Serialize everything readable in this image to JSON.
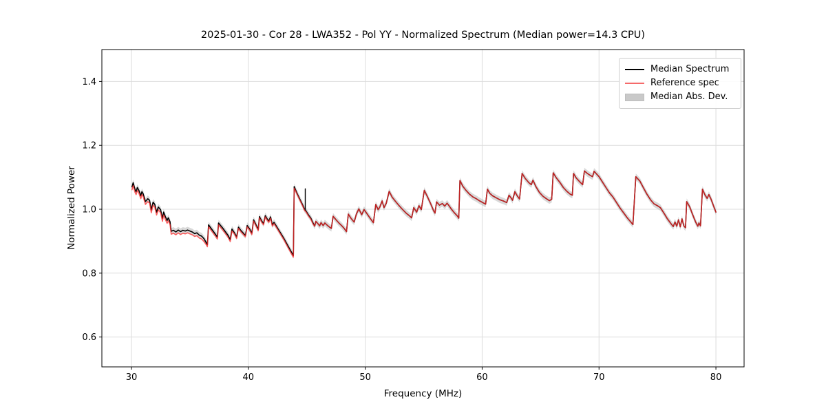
{
  "figure": {
    "title": "2025-01-30 - Cor 28 - LWA352 - Pol YY - Normalized Spectrum (Median power=14.3 CPU)",
    "xlabel": "Frequency (MHz)",
    "ylabel": "Normalized Power",
    "legend": [
      {
        "label": "Median Spectrum",
        "type": "line",
        "color": "#000000"
      },
      {
        "label": "Reference spec",
        "type": "line",
        "color": "#f56a6a"
      },
      {
        "label": "Median Abs. Dev.",
        "type": "patch",
        "color": "#c9c9c9"
      }
    ]
  },
  "chart_data": {
    "type": "line",
    "title": "2025-01-30 - Cor 28 - LWA352 - Pol YY - Normalized Spectrum (Median power=14.3 CPU)",
    "xlabel": "Frequency (MHz)",
    "ylabel": "Normalized Power",
    "xlim": [
      27.47,
      82.41
    ],
    "ylim": [
      0.5065,
      1.5
    ],
    "xticks": [
      30,
      40,
      50,
      60,
      70,
      80
    ],
    "xtick_labels": [
      "30",
      "40",
      "50",
      "60",
      "70",
      "80"
    ],
    "yticks": [
      0.6,
      0.8,
      1.0,
      1.2,
      1.4
    ],
    "ytick_labels": [
      "0.6",
      "0.8",
      "1.0",
      "1.2",
      "1.4"
    ],
    "grid": true,
    "legend_position": "upper right",
    "series_names": [
      "Median Spectrum",
      "Reference spec",
      "Median Abs. Dev."
    ],
    "colors": {
      "median": "#000000",
      "reference": "rgba(255,45,45,0.75)",
      "band": "#9a9a9a"
    },
    "band_halfwidth": 0.01,
    "spike": {
      "x": 44.87,
      "from": 0.997,
      "to": 1.064
    },
    "points_format": [
      "freq_MHz",
      "median",
      "reference"
    ],
    "points": [
      [
        30.05,
        1.07,
        1.061
      ],
      [
        30.15,
        1.083,
        1.074
      ],
      [
        30.3,
        1.062,
        1.053
      ],
      [
        30.4,
        1.055,
        1.046
      ],
      [
        30.5,
        1.068,
        1.059
      ],
      [
        30.65,
        1.058,
        1.049
      ],
      [
        30.8,
        1.042,
        1.033
      ],
      [
        30.9,
        1.055,
        1.046
      ],
      [
        31.0,
        1.049,
        1.04
      ],
      [
        31.2,
        1.024,
        1.015
      ],
      [
        31.4,
        1.033,
        1.024
      ],
      [
        31.55,
        1.028,
        1.019
      ],
      [
        31.7,
        0.998,
        0.989
      ],
      [
        31.85,
        1.022,
        1.013
      ],
      [
        32.0,
        1.015,
        1.006
      ],
      [
        32.15,
        0.991,
        0.982
      ],
      [
        32.3,
        1.007,
        0.998
      ],
      [
        32.5,
        0.998,
        0.989
      ],
      [
        32.65,
        0.971,
        0.962
      ],
      [
        32.75,
        0.991,
        0.982
      ],
      [
        32.9,
        0.977,
        0.968
      ],
      [
        33.05,
        0.965,
        0.956
      ],
      [
        33.15,
        0.973,
        0.964
      ],
      [
        33.3,
        0.961,
        0.952
      ],
      [
        33.4,
        0.931,
        0.922
      ],
      [
        33.6,
        0.934,
        0.925
      ],
      [
        33.8,
        0.929,
        0.92
      ],
      [
        34.0,
        0.935,
        0.926
      ],
      [
        34.2,
        0.93,
        0.921
      ],
      [
        34.4,
        0.934,
        0.925
      ],
      [
        34.6,
        0.932,
        0.923
      ],
      [
        34.8,
        0.935,
        0.926
      ],
      [
        35.0,
        0.932,
        0.923
      ],
      [
        35.2,
        0.929,
        0.92
      ],
      [
        35.4,
        0.924,
        0.915
      ],
      [
        35.6,
        0.926,
        0.917
      ],
      [
        35.8,
        0.919,
        0.91
      ],
      [
        36.0,
        0.916,
        0.907
      ],
      [
        36.2,
        0.908,
        0.899
      ],
      [
        36.4,
        0.895,
        0.889
      ],
      [
        36.5,
        0.889,
        0.883
      ],
      [
        36.6,
        0.951,
        0.945
      ],
      [
        36.8,
        0.941,
        0.935
      ],
      [
        37.0,
        0.931,
        0.925
      ],
      [
        37.2,
        0.921,
        0.915
      ],
      [
        37.35,
        0.913,
        0.907
      ],
      [
        37.45,
        0.957,
        0.951
      ],
      [
        37.65,
        0.948,
        0.942
      ],
      [
        37.85,
        0.939,
        0.933
      ],
      [
        38.05,
        0.929,
        0.923
      ],
      [
        38.25,
        0.919,
        0.913
      ],
      [
        38.45,
        0.905,
        0.899
      ],
      [
        38.6,
        0.938,
        0.932
      ],
      [
        38.8,
        0.927,
        0.923
      ],
      [
        39.0,
        0.913,
        0.909
      ],
      [
        39.15,
        0.944,
        0.94
      ],
      [
        39.35,
        0.934,
        0.93
      ],
      [
        39.55,
        0.926,
        0.922
      ],
      [
        39.75,
        0.918,
        0.914
      ],
      [
        39.9,
        0.949,
        0.945
      ],
      [
        40.1,
        0.939,
        0.935
      ],
      [
        40.3,
        0.925,
        0.921
      ],
      [
        40.45,
        0.967,
        0.963
      ],
      [
        40.65,
        0.952,
        0.948
      ],
      [
        40.85,
        0.937,
        0.933
      ],
      [
        40.95,
        0.977,
        0.973
      ],
      [
        41.15,
        0.963,
        0.959
      ],
      [
        41.3,
        0.955,
        0.951
      ],
      [
        41.45,
        0.98,
        0.976
      ],
      [
        41.6,
        0.97,
        0.966
      ],
      [
        41.75,
        0.963,
        0.959
      ],
      [
        41.9,
        0.976,
        0.972
      ],
      [
        42.05,
        0.951,
        0.947
      ],
      [
        42.2,
        0.959,
        0.955
      ],
      [
        42.45,
        0.944,
        0.94
      ],
      [
        42.75,
        0.926,
        0.922
      ],
      [
        43.05,
        0.908,
        0.904
      ],
      [
        43.35,
        0.888,
        0.883
      ],
      [
        43.65,
        0.868,
        0.863
      ],
      [
        43.85,
        0.855,
        0.85
      ],
      [
        43.92,
        1.071,
        1.066
      ],
      [
        44.15,
        1.051,
        1.048
      ],
      [
        44.4,
        1.032,
        1.029
      ],
      [
        44.65,
        1.013,
        1.01
      ],
      [
        44.82,
        0.999,
        0.996
      ],
      [
        44.93,
        0.995,
        0.992
      ],
      [
        45.15,
        0.982,
        0.979
      ],
      [
        45.35,
        0.972,
        0.969
      ],
      [
        45.55,
        0.956,
        0.953
      ],
      [
        45.68,
        0.947,
        0.947
      ],
      [
        45.78,
        0.962,
        0.962
      ],
      [
        45.95,
        0.955,
        0.955
      ],
      [
        46.1,
        0.948,
        0.948
      ],
      [
        46.22,
        0.958,
        0.958
      ],
      [
        46.4,
        0.949,
        0.949
      ],
      [
        46.55,
        0.957,
        0.957
      ],
      [
        46.75,
        0.95,
        0.95
      ],
      [
        46.95,
        0.944,
        0.944
      ],
      [
        47.1,
        0.94,
        0.94
      ],
      [
        47.25,
        0.978,
        0.978
      ],
      [
        47.5,
        0.967,
        0.967
      ],
      [
        47.75,
        0.957,
        0.957
      ],
      [
        48.0,
        0.948,
        0.948
      ],
      [
        48.2,
        0.94,
        0.94
      ],
      [
        48.4,
        0.93,
        0.93
      ],
      [
        48.55,
        0.985,
        0.985
      ],
      [
        48.8,
        0.971,
        0.971
      ],
      [
        49.05,
        0.96,
        0.96
      ],
      [
        49.25,
        0.986,
        0.986
      ],
      [
        49.45,
        1.001,
        1.001
      ],
      [
        49.7,
        0.983,
        0.983
      ],
      [
        49.9,
        0.999,
        0.999
      ],
      [
        50.15,
        0.986,
        0.986
      ],
      [
        50.45,
        0.97,
        0.97
      ],
      [
        50.7,
        0.958,
        0.958
      ],
      [
        50.9,
        1.015,
        1.015
      ],
      [
        51.1,
        0.999,
        0.999
      ],
      [
        51.25,
        1.007,
        1.007
      ],
      [
        51.45,
        1.026,
        1.026
      ],
      [
        51.6,
        1.005,
        1.005
      ],
      [
        51.8,
        1.019,
        1.019
      ],
      [
        52.05,
        1.056,
        1.056
      ],
      [
        52.3,
        1.038,
        1.038
      ],
      [
        52.6,
        1.024,
        1.024
      ],
      [
        52.9,
        1.011,
        1.011
      ],
      [
        53.2,
        0.999,
        0.999
      ],
      [
        53.5,
        0.988,
        0.988
      ],
      [
        53.8,
        0.979,
        0.979
      ],
      [
        53.97,
        0.973,
        0.973
      ],
      [
        54.15,
        1.005,
        1.005
      ],
      [
        54.4,
        0.991,
        0.991
      ],
      [
        54.6,
        1.011,
        1.011
      ],
      [
        54.8,
        0.999,
        0.999
      ],
      [
        55.05,
        1.059,
        1.059
      ],
      [
        55.3,
        1.041,
        1.041
      ],
      [
        55.6,
        1.017,
        1.017
      ],
      [
        55.85,
        0.995,
        0.995
      ],
      [
        55.97,
        0.988,
        0.988
      ],
      [
        56.1,
        1.023,
        1.023
      ],
      [
        56.35,
        1.013,
        1.013
      ],
      [
        56.6,
        1.018,
        1.018
      ],
      [
        56.8,
        1.01,
        1.01
      ],
      [
        57.0,
        1.019,
        1.019
      ],
      [
        57.15,
        1.012,
        1.012
      ],
      [
        57.4,
        0.999,
        0.999
      ],
      [
        57.65,
        0.988,
        0.988
      ],
      [
        57.9,
        0.978,
        0.978
      ],
      [
        58.0,
        0.972,
        0.972
      ],
      [
        58.1,
        1.09,
        1.09
      ],
      [
        58.35,
        1.072,
        1.072
      ],
      [
        58.6,
        1.06,
        1.06
      ],
      [
        58.9,
        1.048,
        1.048
      ],
      [
        59.2,
        1.039,
        1.039
      ],
      [
        59.5,
        1.033,
        1.033
      ],
      [
        59.75,
        1.027,
        1.027
      ],
      [
        60.0,
        1.022,
        1.022
      ],
      [
        60.3,
        1.016,
        1.016
      ],
      [
        60.45,
        1.063,
        1.063
      ],
      [
        60.65,
        1.05,
        1.05
      ],
      [
        60.9,
        1.042,
        1.042
      ],
      [
        61.2,
        1.036,
        1.036
      ],
      [
        61.5,
        1.03,
        1.03
      ],
      [
        61.8,
        1.026,
        1.026
      ],
      [
        62.1,
        1.021,
        1.021
      ],
      [
        62.3,
        1.044,
        1.044
      ],
      [
        62.5,
        1.034,
        1.034
      ],
      [
        62.6,
        1.028,
        1.028
      ],
      [
        62.8,
        1.055,
        1.055
      ],
      [
        63.0,
        1.042,
        1.042
      ],
      [
        63.2,
        1.032,
        1.032
      ],
      [
        63.42,
        1.112,
        1.112
      ],
      [
        63.7,
        1.096,
        1.096
      ],
      [
        64.0,
        1.083,
        1.083
      ],
      [
        64.2,
        1.077,
        1.077
      ],
      [
        64.35,
        1.091,
        1.091
      ],
      [
        64.6,
        1.071,
        1.071
      ],
      [
        64.9,
        1.053,
        1.053
      ],
      [
        65.2,
        1.041,
        1.041
      ],
      [
        65.5,
        1.033,
        1.033
      ],
      [
        65.75,
        1.027,
        1.027
      ],
      [
        65.95,
        1.031,
        1.031
      ],
      [
        66.08,
        1.114,
        1.114
      ],
      [
        66.35,
        1.098,
        1.098
      ],
      [
        66.65,
        1.084,
        1.084
      ],
      [
        66.95,
        1.068,
        1.068
      ],
      [
        67.25,
        1.056,
        1.056
      ],
      [
        67.55,
        1.047,
        1.047
      ],
      [
        67.72,
        1.044,
        1.044
      ],
      [
        67.82,
        1.112,
        1.112
      ],
      [
        68.05,
        1.098,
        1.098
      ],
      [
        68.35,
        1.086,
        1.086
      ],
      [
        68.6,
        1.077,
        1.077
      ],
      [
        68.75,
        1.12,
        1.12
      ],
      [
        69.0,
        1.112,
        1.112
      ],
      [
        69.25,
        1.106,
        1.106
      ],
      [
        69.45,
        1.102,
        1.102
      ],
      [
        69.58,
        1.119,
        1.119
      ],
      [
        69.8,
        1.11,
        1.11
      ],
      [
        70.0,
        1.102,
        1.102
      ],
      [
        70.3,
        1.085,
        1.085
      ],
      [
        70.6,
        1.068,
        1.068
      ],
      [
        70.9,
        1.051,
        1.051
      ],
      [
        71.2,
        1.038,
        1.038
      ],
      [
        71.5,
        1.021,
        1.021
      ],
      [
        71.8,
        1.004,
        1.004
      ],
      [
        72.1,
        0.989,
        0.989
      ],
      [
        72.4,
        0.974,
        0.974
      ],
      [
        72.7,
        0.961,
        0.961
      ],
      [
        72.9,
        0.952,
        0.952
      ],
      [
        73.15,
        1.102,
        1.102
      ],
      [
        73.5,
        1.088,
        1.088
      ],
      [
        73.8,
        1.067,
        1.067
      ],
      [
        74.1,
        1.047,
        1.047
      ],
      [
        74.4,
        1.03,
        1.03
      ],
      [
        74.7,
        1.017,
        1.017
      ],
      [
        75.0,
        1.011,
        1.011
      ],
      [
        75.25,
        1.005,
        1.005
      ],
      [
        75.55,
        0.988,
        0.988
      ],
      [
        75.85,
        0.97,
        0.97
      ],
      [
        76.15,
        0.955,
        0.955
      ],
      [
        76.35,
        0.946,
        0.946
      ],
      [
        76.5,
        0.96,
        0.96
      ],
      [
        76.65,
        0.947,
        0.947
      ],
      [
        76.8,
        0.967,
        0.967
      ],
      [
        76.95,
        0.945,
        0.945
      ],
      [
        77.1,
        0.97,
        0.97
      ],
      [
        77.25,
        0.948,
        0.948
      ],
      [
        77.4,
        0.942,
        0.942
      ],
      [
        77.5,
        1.024,
        1.024
      ],
      [
        77.75,
        1.008,
        1.008
      ],
      [
        78.0,
        0.984,
        0.984
      ],
      [
        78.25,
        0.961,
        0.961
      ],
      [
        78.45,
        0.947,
        0.947
      ],
      [
        78.55,
        0.957,
        0.957
      ],
      [
        78.68,
        0.948,
        0.948
      ],
      [
        78.85,
        1.063,
        1.063
      ],
      [
        79.05,
        1.046,
        1.046
      ],
      [
        79.25,
        1.034,
        1.034
      ],
      [
        79.4,
        1.046,
        1.046
      ],
      [
        79.6,
        1.03,
        1.03
      ],
      [
        79.8,
        1.01,
        1.01
      ],
      [
        80.0,
        0.991,
        0.991
      ]
    ]
  }
}
